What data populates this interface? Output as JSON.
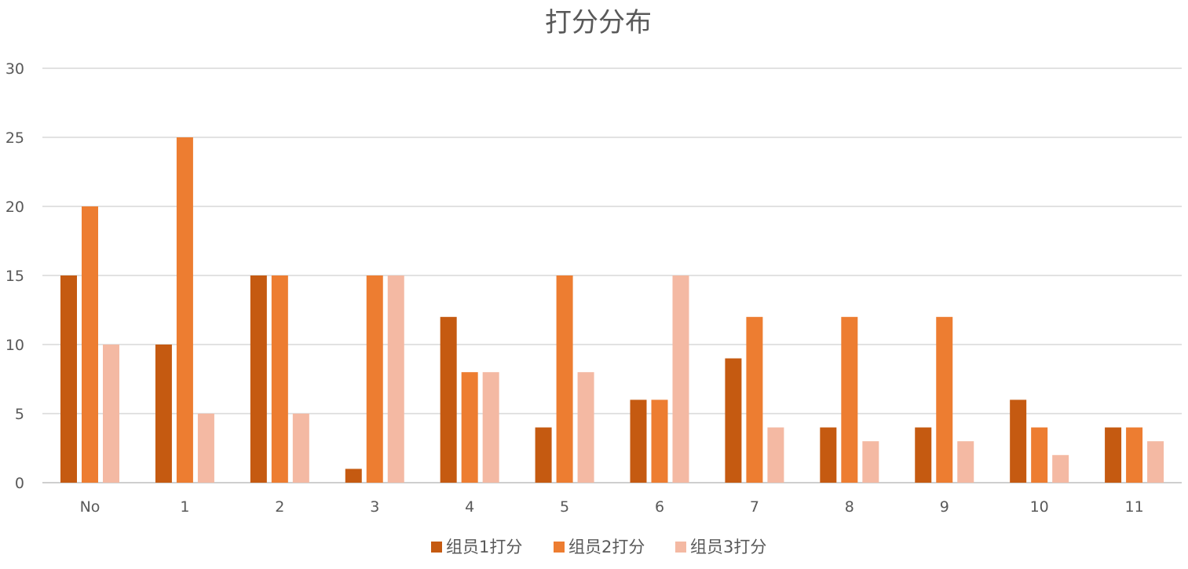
{
  "chart_data": {
    "type": "bar",
    "title": "打分分布",
    "xlabel": "",
    "ylabel": "",
    "ylim": [
      0,
      30
    ],
    "yticks": [
      0,
      5,
      10,
      15,
      20,
      25,
      30
    ],
    "grid": true,
    "legend_position": "bottom",
    "categories": [
      "No",
      "1",
      "2",
      "3",
      "4",
      "5",
      "6",
      "7",
      "8",
      "9",
      "10",
      "11"
    ],
    "series": [
      {
        "name": "组员1打分",
        "color": "#C55A11",
        "values": [
          15,
          10,
          15,
          1,
          12,
          4,
          6,
          9,
          4,
          4,
          6,
          4
        ]
      },
      {
        "name": "组员2打分",
        "color": "#ED7D31",
        "values": [
          20,
          25,
          15,
          15,
          8,
          15,
          6,
          12,
          12,
          12,
          4,
          4
        ]
      },
      {
        "name": "组员3打分",
        "color": "#F4B9A3",
        "values": [
          10,
          5,
          5,
          15,
          8,
          8,
          15,
          4,
          3,
          3,
          2,
          3
        ]
      }
    ]
  }
}
